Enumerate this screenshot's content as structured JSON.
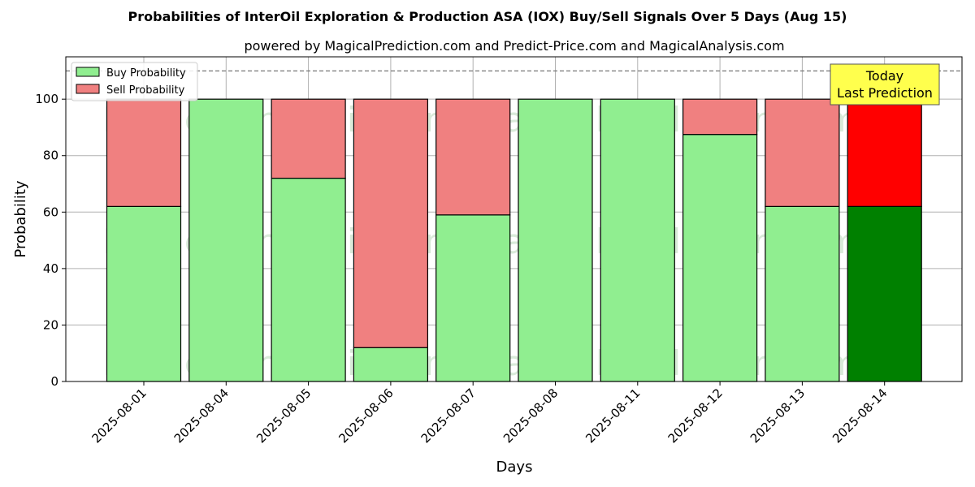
{
  "chart_data": {
    "type": "bar",
    "stacked": true,
    "title": "Probabilities of InterOil Exploration & Production ASA (IOX) Buy/Sell Signals Over 5 Days (Aug 15)",
    "subtitle": "powered by MagicalPrediction.com and Predict-Price.com and MagicalAnalysis.com",
    "xlabel": "Days",
    "ylabel": "Probability",
    "ylim": [
      0,
      115
    ],
    "yticks": [
      0,
      20,
      40,
      60,
      80,
      100
    ],
    "grid": true,
    "reference_line": 110,
    "categories": [
      "2025-08-01",
      "2025-08-04",
      "2025-08-05",
      "2025-08-06",
      "2025-08-07",
      "2025-08-08",
      "2025-08-11",
      "2025-08-12",
      "2025-08-13",
      "2025-08-14"
    ],
    "series": [
      {
        "name": "Buy Probability",
        "color": "#90ee90",
        "highlight_color": "#008000",
        "values": [
          62,
          100,
          72,
          12,
          59,
          100,
          100,
          87.5,
          62,
          62
        ]
      },
      {
        "name": "Sell Probability",
        "color": "#f08080",
        "highlight_color": "#ff0000",
        "values": [
          38,
          0,
          28,
          88,
          41,
          0,
          0,
          12.5,
          38,
          38
        ]
      }
    ],
    "legend_position": "top-left",
    "highlight_index": 9,
    "annotation": {
      "line1": "Today",
      "line2": "Last Prediction",
      "bg": "#ffff4d"
    },
    "watermarks": [
      "MagicalAnalysis.com",
      "MagicalPrediction.com"
    ]
  }
}
